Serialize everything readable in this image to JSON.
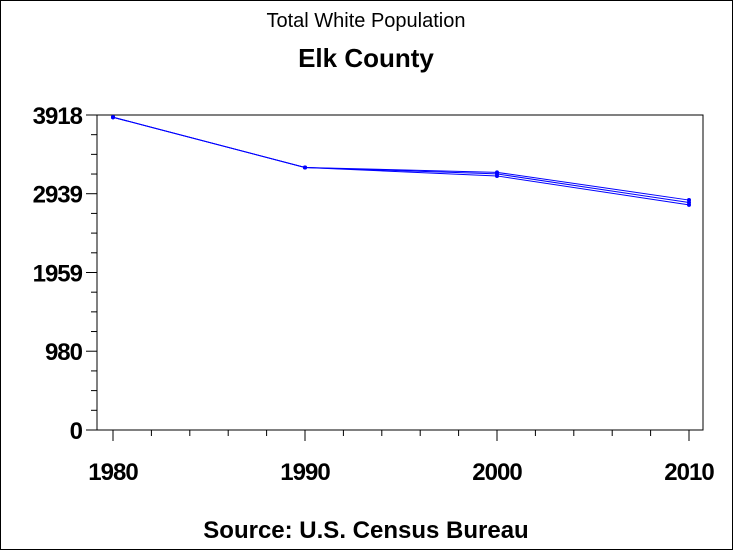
{
  "chart_data": {
    "type": "line",
    "title": "Total White Population",
    "subtitle": "Elk County",
    "footnote": "Source: U.S. Census Bureau",
    "xlabel": "",
    "ylabel": "",
    "x": [
      1980,
      1990,
      2000,
      2010
    ],
    "x_tick_labels": [
      "1980",
      "1990",
      "2000",
      "2010"
    ],
    "xlim": [
      1980,
      2010
    ],
    "y_ticks": [
      0,
      980,
      1959,
      2939,
      3918
    ],
    "y_tick_labels": [
      "0",
      "980",
      "1959",
      "2939",
      "3918"
    ],
    "ylim": [
      0,
      3918
    ],
    "grid": false,
    "legend": "none",
    "color": "#0000ff",
    "series": [
      {
        "values": [
          3890,
          3265,
          3160,
          2800
        ]
      },
      {
        "values": [
          3890,
          3265,
          3185,
          2830
        ]
      },
      {
        "values": [
          3890,
          3265,
          3205,
          2860
        ]
      }
    ]
  }
}
